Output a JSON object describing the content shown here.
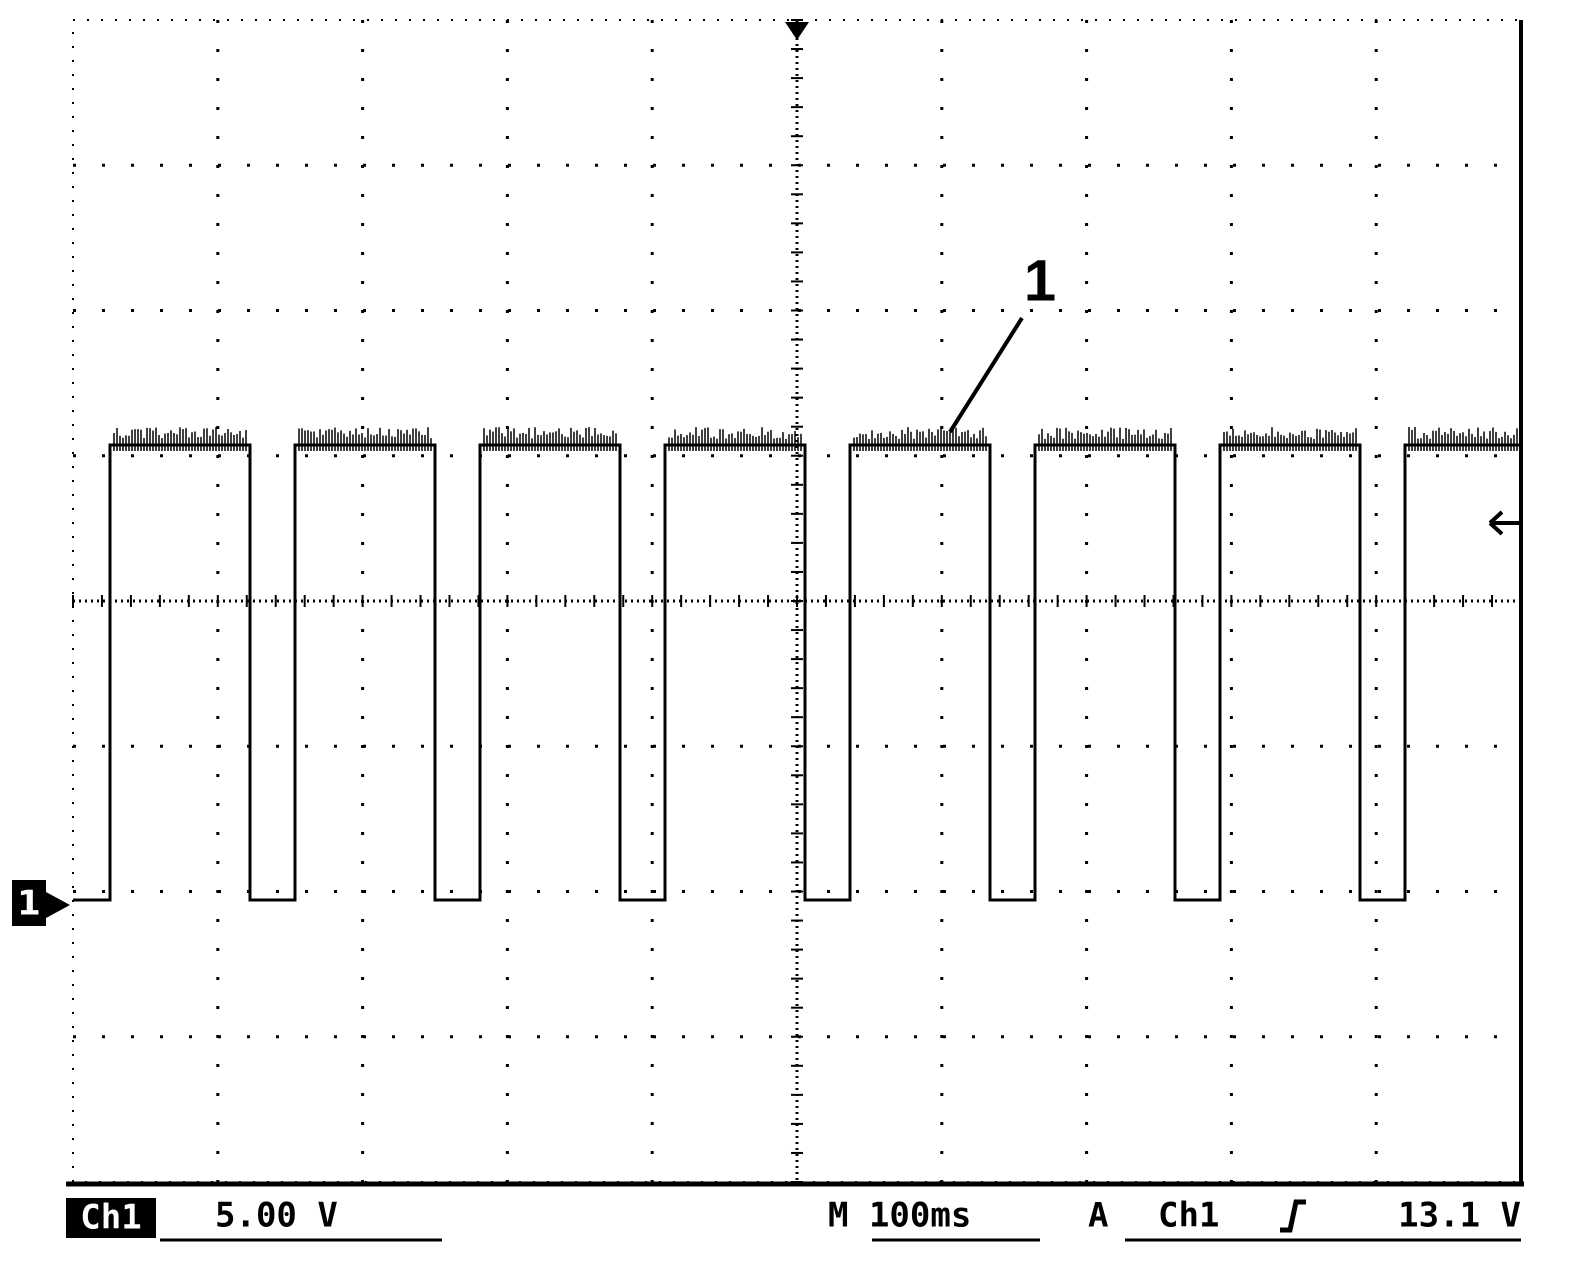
{
  "channel_marker": "1",
  "annotation": "1",
  "status_bar": {
    "channel": "Ch1",
    "scale": "5.00 V",
    "timebase": "M 100ms",
    "trigger_mode": "A",
    "trigger_source": "Ch1",
    "trigger_level": "13.1 V"
  }
}
